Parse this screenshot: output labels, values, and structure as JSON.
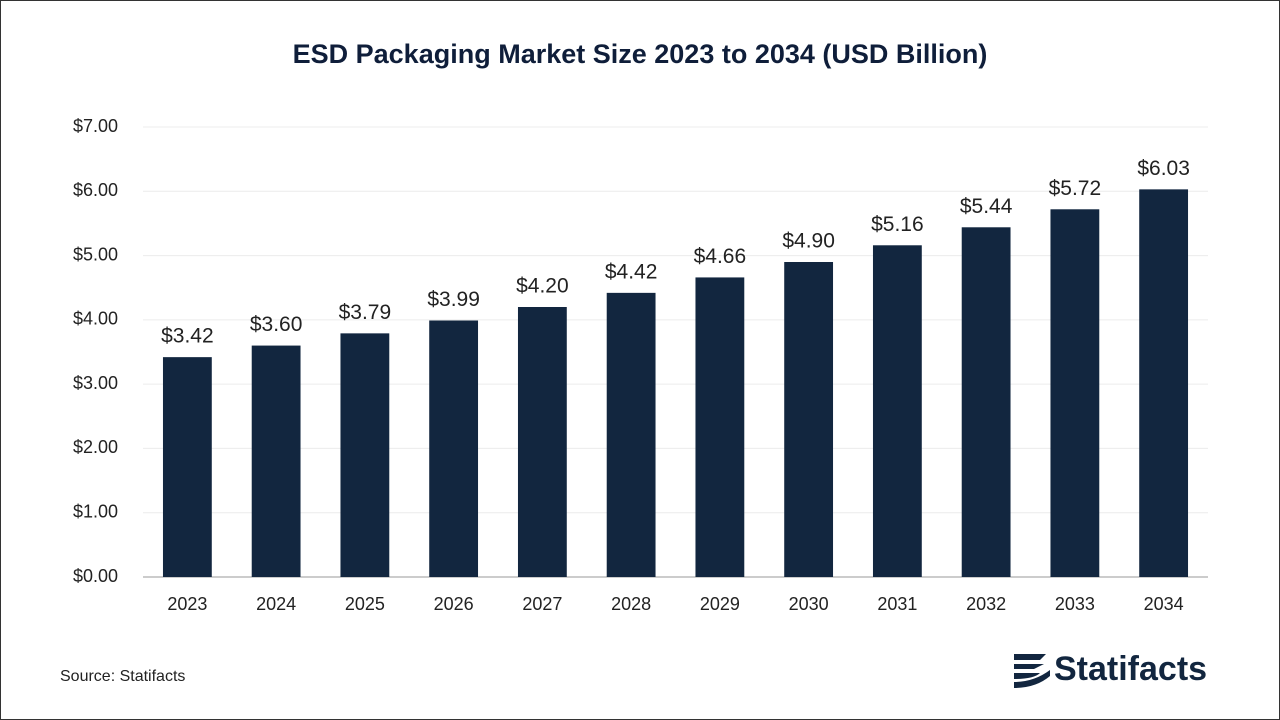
{
  "chart_data": {
    "type": "bar",
    "title": "ESD Packaging Market Size 2023 to 2034 (USD Billion)",
    "categories": [
      "2023",
      "2024",
      "2025",
      "2026",
      "2027",
      "2028",
      "2029",
      "2030",
      "2031",
      "2032",
      "2033",
      "2034"
    ],
    "values": [
      3.42,
      3.6,
      3.79,
      3.99,
      4.2,
      4.42,
      4.66,
      4.9,
      5.16,
      5.44,
      5.72,
      6.03
    ],
    "value_labels": [
      "$3.42",
      "$3.60",
      "$3.79",
      "$3.99",
      "$4.20",
      "$4.42",
      "$4.66",
      "$4.90",
      "$5.16",
      "$5.44",
      "$5.72",
      "$6.03"
    ],
    "color": "#12263f",
    "ylim": [
      0,
      7
    ],
    "yticks": [
      {
        "value": 0,
        "label": "$0.00"
      },
      {
        "value": 1,
        "label": "$1.00"
      },
      {
        "value": 2,
        "label": "$2.00"
      },
      {
        "value": 3,
        "label": "$3.00"
      },
      {
        "value": 4,
        "label": "$4.00"
      },
      {
        "value": 5,
        "label": "$5.00"
      },
      {
        "value": 6,
        "label": "$6.00"
      },
      {
        "value": 7,
        "label": "$7.00"
      }
    ],
    "grid": true,
    "source": "Source: Statifacts"
  },
  "logo": "Statifacts"
}
